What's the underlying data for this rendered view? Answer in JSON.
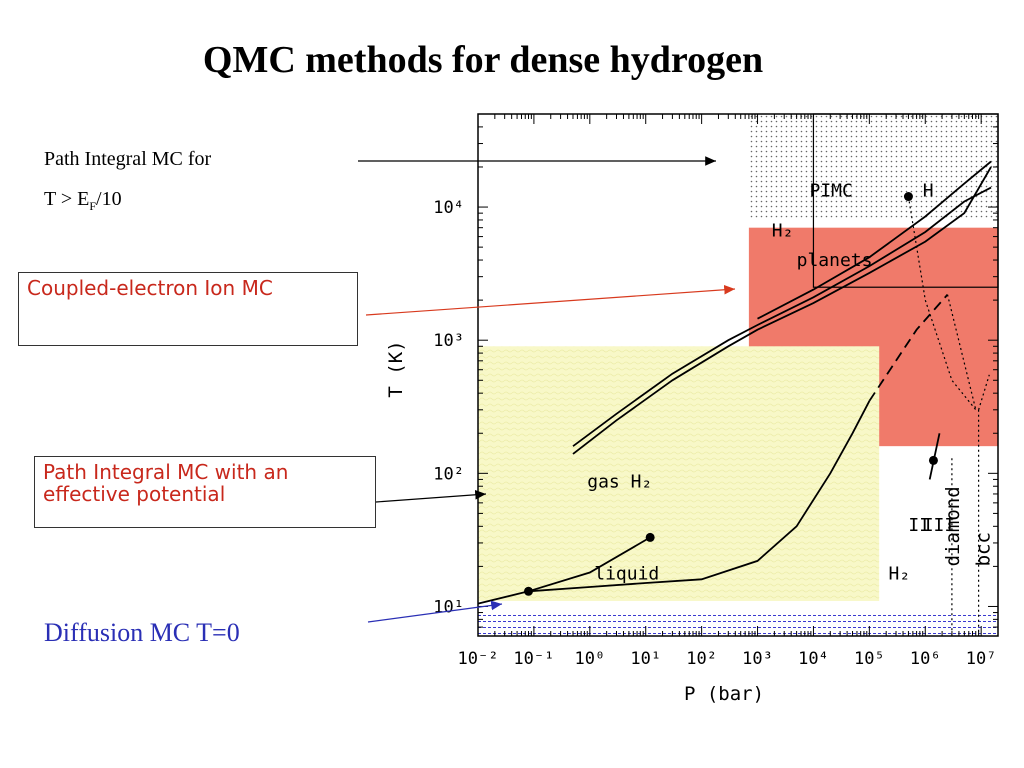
{
  "slide": {
    "title": "QMC methods for dense hydrogen",
    "label_pimc": "Path Integral MC for",
    "label_pimc_cond_a": "T > E",
    "label_pimc_cond_sub": "F",
    "label_pimc_cond_b": "/10",
    "box_cepimc": "Coupled-electron Ion MC",
    "box_pimc_eff": "Path Integral MC with an effective potential",
    "label_dmc": "Diffusion MC T=0"
  },
  "colors": {
    "red_region": "#f07a6a",
    "yellow_region": "#f8f8c8",
    "blue_region": "#3a3ad0",
    "arrow_red": "#d83a1e",
    "arrow_blue": "#2a2fb5",
    "box_text": "#c8281c"
  },
  "chart_data": {
    "type": "line",
    "xscale": "log",
    "yscale": "log",
    "xlabel": "P (bar)",
    "ylabel": "T (K)",
    "xlim": [
      0.01,
      20000000
    ],
    "ylim": [
      6,
      50000
    ],
    "xticks": [
      {
        "v": 0.01,
        "label": "10⁻²"
      },
      {
        "v": 0.1,
        "label": "10⁻¹"
      },
      {
        "v": 1,
        "label": "10⁰"
      },
      {
        "v": 10,
        "label": "10¹"
      },
      {
        "v": 100,
        "label": "10²"
      },
      {
        "v": 1000,
        "label": "10³"
      },
      {
        "v": 10000,
        "label": "10⁴"
      },
      {
        "v": 100000,
        "label": "10⁵"
      },
      {
        "v": 1000000,
        "label": "10⁶"
      },
      {
        "v": 10000000,
        "label": "10⁷"
      }
    ],
    "yticks": [
      {
        "v": 10,
        "label": "10¹"
      },
      {
        "v": 100,
        "label": "10²"
      },
      {
        "v": 1000,
        "label": "10³"
      },
      {
        "v": 10000,
        "label": "10⁴"
      }
    ],
    "regions": [
      {
        "name": "pimc",
        "x": [
          700,
          20000000
        ],
        "y": [
          8000,
          50000
        ],
        "style": "dots"
      },
      {
        "name": "cepimc",
        "x": [
          700,
          20000000
        ],
        "y": [
          160,
          7000
        ],
        "style": "red"
      },
      {
        "name": "pimc-effective",
        "x": [
          0.01,
          150000
        ],
        "y": [
          11,
          900
        ],
        "style": "yellow"
      },
      {
        "name": "dmc",
        "x": [
          0.01,
          20000000
        ],
        "y": [
          6,
          9
        ],
        "style": "blue"
      }
    ],
    "pimc_box": {
      "x": [
        10000,
        20000000
      ],
      "y": [
        2500,
        50000
      ]
    },
    "series": [
      {
        "style": "solid",
        "points": [
          [
            0.5,
            140
          ],
          [
            3,
            250
          ],
          [
            30,
            500
          ],
          [
            300,
            900
          ],
          [
            1000,
            1200
          ],
          [
            10000,
            1900
          ],
          [
            100000,
            3200
          ],
          [
            1000000,
            5500
          ],
          [
            5000000,
            9000
          ],
          [
            15000000,
            20000
          ]
        ]
      },
      {
        "style": "solid",
        "points": [
          [
            0.5,
            160
          ],
          [
            3,
            280
          ],
          [
            30,
            560
          ],
          [
            300,
            1000
          ],
          [
            1000,
            1300
          ],
          [
            10000,
            2100
          ],
          [
            100000,
            3600
          ],
          [
            1000000,
            6500
          ],
          [
            5000000,
            11000
          ],
          [
            15000000,
            14000
          ]
        ]
      },
      {
        "style": "solid",
        "points": [
          [
            1000,
            1450
          ],
          [
            10000,
            2400
          ],
          [
            100000,
            4200
          ],
          [
            1000000,
            8500
          ],
          [
            5000000,
            15000
          ],
          [
            15000000,
            22000
          ]
        ]
      },
      {
        "style": "solid",
        "points": [
          [
            0.01,
            10.5
          ],
          [
            0.08,
            13
          ],
          [
            1,
            14
          ],
          [
            10,
            15
          ],
          [
            100,
            16
          ],
          [
            1000,
            22
          ],
          [
            5000,
            40
          ],
          [
            20000,
            100
          ],
          [
            50000,
            200
          ],
          [
            100000,
            350
          ]
        ]
      },
      {
        "style": "solid",
        "points": [
          [
            0.08,
            13
          ],
          [
            1,
            18
          ],
          [
            12,
            33
          ]
        ]
      },
      {
        "style": "dashed",
        "points": [
          [
            100000,
            350
          ],
          [
            700000,
            1200
          ],
          [
            2500000,
            2200
          ]
        ]
      },
      {
        "style": "dotted",
        "points": [
          [
            500000,
            12000
          ],
          [
            1000000,
            2000
          ],
          [
            3000000,
            500
          ],
          [
            8000000,
            300
          ]
        ]
      },
      {
        "style": "dotted",
        "points": [
          [
            2500000,
            2200
          ],
          [
            8000000,
            300
          ]
        ]
      },
      {
        "style": "dotted",
        "points": [
          [
            3000000,
            130
          ],
          [
            3000000,
            6
          ]
        ]
      },
      {
        "style": "dotted",
        "points": [
          [
            9000000,
            300
          ],
          [
            9000000,
            6
          ]
        ]
      },
      {
        "style": "dotted",
        "points": [
          [
            9000000,
            300
          ],
          [
            14000000,
            550
          ]
        ]
      },
      {
        "style": "solid",
        "points": [
          [
            1200000,
            90
          ],
          [
            1800000,
            200
          ]
        ]
      }
    ],
    "markers": [
      [
        0.08,
        13
      ],
      [
        12,
        33
      ],
      [
        1400000,
        125
      ],
      [
        500000,
        12000
      ]
    ],
    "annotations": [
      {
        "text": "PIMC",
        "x": 8500,
        "y": 12000
      },
      {
        "text": "H",
        "x": 900000,
        "y": 12000
      },
      {
        "text": "planets",
        "x": 5000,
        "y": 3600
      },
      {
        "text": "gas H₂",
        "x": 0.9,
        "y": 78
      },
      {
        "text": "liquid",
        "x": 1.2,
        "y": 16
      },
      {
        "text": "H₂",
        "x": 220000,
        "y": 16
      },
      {
        "text": "II",
        "x": 500000,
        "y": 37
      },
      {
        "text": "III",
        "x": 900000,
        "y": 37
      }
    ],
    "h2_label": "H₂",
    "diamond_label": "diamond",
    "bcc_label": "bcc"
  }
}
